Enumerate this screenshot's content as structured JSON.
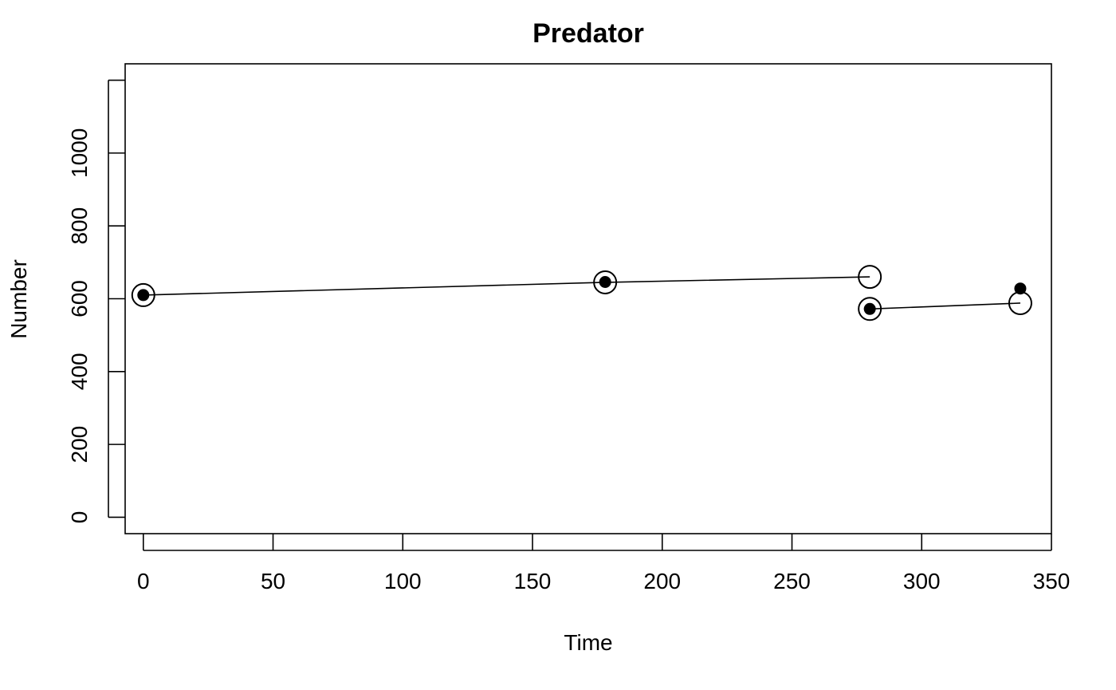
{
  "chart_data": {
    "type": "scatter",
    "title": "Predator",
    "xlabel": "Time",
    "ylabel": "Number",
    "xlim": [
      -7,
      350
    ],
    "ylim": [
      -45,
      1245
    ],
    "x_ticks": [
      0,
      50,
      100,
      150,
      200,
      250,
      300,
      350
    ],
    "y_ticks": [
      0,
      200,
      400,
      600,
      800,
      1000
    ],
    "grid": false,
    "series": [
      {
        "marker": "open-circle",
        "points": [
          {
            "x": 0,
            "y": 610
          },
          {
            "x": 178,
            "y": 645
          },
          {
            "x": 280,
            "y": 660
          },
          {
            "x": 280,
            "y": 572
          },
          {
            "x": 338,
            "y": 588
          }
        ]
      },
      {
        "marker": "filled-circle",
        "points": [
          {
            "x": 0,
            "y": 610
          },
          {
            "x": 178,
            "y": 646
          },
          {
            "x": 280,
            "y": 572
          },
          {
            "x": 338,
            "y": 628
          }
        ]
      }
    ],
    "lines": [
      {
        "x": [
          0,
          178,
          280
        ],
        "y": [
          610,
          645,
          660
        ]
      },
      {
        "x": [
          280,
          338
        ],
        "y": [
          572,
          588
        ]
      }
    ]
  }
}
